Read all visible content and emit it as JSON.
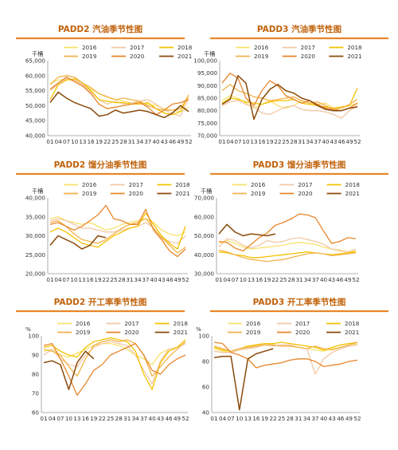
{
  "colors": {
    "accent": "#e8862a",
    "title": "#c0620a",
    "axis": "#999999",
    "series": [
      "#f7e26b",
      "#f2c8a6",
      "#f3c200",
      "#f1b34c",
      "#e8862a",
      "#8a4a0c"
    ]
  },
  "chart_data": [
    {
      "type": "line",
      "title": "PADD2 汽油季节性图",
      "unit_label": "千桶",
      "yticks": [
        "65,000",
        "60,000",
        "55,000",
        "50,000",
        "45,000",
        "40,000"
      ],
      "ylim": [
        40000,
        65000
      ],
      "xticks": [
        "01",
        "04",
        "07",
        "10",
        "13",
        "16",
        "19",
        "22",
        "25",
        "28",
        "31",
        "34",
        "37",
        "40",
        "43",
        "46",
        "49",
        "52"
      ],
      "legend": [
        "2016",
        "2017",
        "2018",
        "2019",
        "2020",
        "2021"
      ],
      "series": [
        {
          "name": "2016",
          "values": [
            57500,
            58500,
            58800,
            58200,
            57200,
            55500,
            54000,
            52800,
            52000,
            51500,
            51000,
            51000,
            50500,
            50000,
            49000,
            48500,
            48000,
            49500
          ]
        },
        {
          "name": "2017",
          "values": [
            55000,
            57000,
            59000,
            58500,
            57000,
            54500,
            52000,
            50500,
            51500,
            50500,
            51000,
            51500,
            52000,
            50500,
            48500,
            47500,
            46500,
            52500
          ]
        },
        {
          "name": "2018",
          "values": [
            52000,
            57000,
            58500,
            59000,
            57500,
            55000,
            52000,
            51500,
            51000,
            51000,
            50500,
            50500,
            51000,
            49000,
            47500,
            47000,
            48000,
            53500
          ]
        },
        {
          "name": "2019",
          "values": [
            57000,
            59500,
            60000,
            59500,
            57500,
            56000,
            54000,
            53000,
            52000,
            52500,
            52000,
            51500,
            50000,
            49000,
            48500,
            48500,
            49000,
            53500
          ]
        },
        {
          "name": "2020",
          "values": [
            55500,
            57500,
            59500,
            58000,
            56500,
            54000,
            50500,
            49000,
            49500,
            50000,
            50500,
            51000,
            49500,
            47000,
            48500,
            50500,
            51000,
            52000
          ]
        },
        {
          "name": "2021",
          "values": [
            51000,
            54500,
            52500,
            51000,
            50000,
            49000,
            46500,
            47000,
            48500,
            47500,
            48000,
            48500,
            48000,
            47000,
            46000,
            47500,
            50000,
            48000
          ]
        }
      ]
    },
    {
      "type": "line",
      "title": "PADD3 汽油季节性图",
      "unit_label": "千桶",
      "yticks": [
        "100,000",
        "95,000",
        "90,000",
        "85,000",
        "80,000",
        "75,000",
        "70,000"
      ],
      "ylim": [
        70000,
        100000
      ],
      "xticks": [
        "01",
        "04",
        "07",
        "10",
        "13",
        "16",
        "19",
        "22",
        "25",
        "28",
        "31",
        "34",
        "37",
        "40",
        "43",
        "46",
        "49",
        "52"
      ],
      "legend": [
        "2016",
        "2017",
        "2018",
        "2019",
        "2020",
        "2021"
      ],
      "series": [
        {
          "name": "2016",
          "values": [
            84000,
            86000,
            85000,
            83000,
            81000,
            82500,
            84000,
            82000,
            81000,
            82000,
            84000,
            83000,
            82500,
            83000,
            81000,
            81000,
            82000,
            83000
          ]
        },
        {
          "name": "2017",
          "values": [
            82000,
            83500,
            84000,
            82500,
            81500,
            79000,
            78500,
            80000,
            81500,
            82000,
            80500,
            80000,
            80000,
            79500,
            78500,
            77000,
            80000,
            82000
          ]
        },
        {
          "name": "2018",
          "values": [
            83000,
            85000,
            84500,
            83500,
            83000,
            82500,
            83500,
            84000,
            84000,
            84500,
            83000,
            82500,
            82000,
            81500,
            81000,
            81500,
            82000,
            89000
          ]
        },
        {
          "name": "2019",
          "values": [
            88000,
            90500,
            88000,
            87000,
            85500,
            85000,
            84000,
            84500,
            85000,
            85500,
            84000,
            83000,
            83500,
            82000,
            80500,
            81000,
            82500,
            84500
          ]
        },
        {
          "name": "2020",
          "values": [
            91000,
            95000,
            93000,
            85000,
            82000,
            88000,
            92000,
            90000,
            86000,
            84500,
            83000,
            84000,
            82500,
            81000,
            80500,
            80000,
            81000,
            83000
          ]
        },
        {
          "name": "2021",
          "values": [
            82500,
            84500,
            94000,
            91000,
            76500,
            84500,
            88500,
            90500,
            88000,
            87000,
            85000,
            84000,
            82000,
            80500,
            80000,
            80000,
            81000,
            81500
          ]
        }
      ]
    },
    {
      "type": "line",
      "title": "PADD2 馏分油季节性图",
      "unit_label": "千桶",
      "yticks": [
        "40,000",
        "35,000",
        "30,000",
        "25,000",
        "20,000"
      ],
      "ylim": [
        20000,
        40000
      ],
      "xticks": [
        "01",
        "04",
        "07",
        "10",
        "13",
        "16",
        "19",
        "22",
        "25",
        "28",
        "31",
        "34",
        "37",
        "40",
        "43",
        "46",
        "49",
        "52"
      ],
      "legend": [
        "2016",
        "2017",
        "2018",
        "2019",
        "2020",
        "2021"
      ],
      "series": [
        {
          "name": "2016",
          "values": [
            34500,
            35000,
            34000,
            33500,
            33000,
            33500,
            32500,
            31500,
            32000,
            33000,
            33500,
            34000,
            34500,
            33500,
            31500,
            30500,
            30000,
            31000
          ]
        },
        {
          "name": "2017",
          "values": [
            34000,
            34500,
            34000,
            33000,
            32000,
            32000,
            31500,
            31000,
            31000,
            31500,
            32000,
            32500,
            33500,
            32000,
            29500,
            28500,
            28000,
            30000
          ]
        },
        {
          "name": "2018",
          "values": [
            31000,
            32000,
            31000,
            29500,
            28000,
            27500,
            27000,
            28500,
            30000,
            31000,
            32000,
            32500,
            36000,
            33000,
            30000,
            28000,
            26500,
            32500
          ]
        },
        {
          "name": "2019",
          "values": [
            33500,
            34000,
            32500,
            30500,
            29000,
            28500,
            28000,
            29000,
            30500,
            32000,
            33000,
            33500,
            34500,
            32000,
            29500,
            27500,
            25500,
            27000
          ]
        },
        {
          "name": "2020",
          "values": [
            33000,
            33500,
            32500,
            31500,
            32500,
            34000,
            35500,
            38000,
            34500,
            34000,
            33000,
            33000,
            37000,
            31500,
            29000,
            26000,
            24500,
            26500
          ]
        },
        {
          "name": "2021",
          "values": [
            27500,
            30000,
            29000,
            28000,
            26500,
            27500,
            30000,
            29500,
            null,
            null,
            null,
            null,
            null,
            null,
            null,
            null,
            null,
            null
          ]
        }
      ]
    },
    {
      "type": "line",
      "title": "PADD3 馏分油季节性图",
      "unit_label": "千桶",
      "yticks": [
        "70,000",
        "60,000",
        "50,000",
        "40,000",
        "30,000"
      ],
      "ylim": [
        30000,
        70000
      ],
      "xticks": [
        "01",
        "04",
        "07",
        "10",
        "13",
        "16",
        "19",
        "22",
        "25",
        "28",
        "31",
        "34",
        "37",
        "40",
        "43",
        "46",
        "49",
        "52"
      ],
      "legend": [
        "2016",
        "2017",
        "2018",
        "2019",
        "2020",
        "2021"
      ],
      "series": [
        {
          "name": "2016",
          "values": [
            46000,
            47500,
            46000,
            44000,
            43000,
            43500,
            44000,
            44500,
            45000,
            46000,
            46500,
            46000,
            45500,
            44000,
            43000,
            42500,
            41500,
            42000
          ]
        },
        {
          "name": "2017",
          "values": [
            44000,
            48500,
            47500,
            45000,
            43500,
            45000,
            47500,
            46500,
            47000,
            48500,
            49000,
            48000,
            47000,
            45500,
            43000,
            42000,
            41500,
            43000
          ]
        },
        {
          "name": "2018",
          "values": [
            41500,
            41000,
            40000,
            39500,
            38500,
            38500,
            39000,
            39500,
            40000,
            40500,
            41000,
            41500,
            41000,
            40500,
            40000,
            40500,
            41000,
            41500
          ]
        },
        {
          "name": "2019",
          "values": [
            42500,
            41500,
            40000,
            38500,
            37500,
            37000,
            36500,
            37000,
            37500,
            38500,
            39500,
            40500,
            41000,
            40500,
            39500,
            40000,
            40500,
            41000
          ]
        },
        {
          "name": "2020",
          "values": [
            47000,
            46500,
            43500,
            42000,
            45500,
            49000,
            51500,
            55500,
            57000,
            59000,
            61500,
            61000,
            59500,
            52500,
            46000,
            47000,
            49000,
            48500
          ]
        },
        {
          "name": "2021",
          "values": [
            51000,
            56000,
            52000,
            50000,
            51000,
            50500,
            50000,
            51000,
            null,
            null,
            null,
            null,
            null,
            null,
            null,
            null,
            null,
            null
          ]
        }
      ]
    },
    {
      "type": "line",
      "title": "PADD2 开工率季节性图",
      "unit_label": "%",
      "yticks": [
        "100",
        "90",
        "80",
        "70",
        "60"
      ],
      "ylim": [
        60,
        100
      ],
      "xticks": [
        "01",
        "04",
        "07",
        "10",
        "13",
        "16",
        "19",
        "22",
        "25",
        "28",
        "31",
        "34",
        "37",
        "40",
        "43",
        "46",
        "49",
        "52"
      ],
      "legend": [
        "2016",
        "2017",
        "2018",
        "2019",
        "2020",
        "2021"
      ],
      "series": [
        {
          "name": "2016",
          "values": [
            92,
            93,
            90,
            89,
            91,
            93,
            95,
            96,
            96,
            95,
            93,
            90,
            88,
            85,
            91,
            93,
            94,
            96
          ]
        },
        {
          "name": "2017",
          "values": [
            90,
            93,
            88,
            85,
            84,
            90,
            94,
            96,
            97,
            96,
            95,
            90,
            82,
            75,
            87,
            93,
            94,
            96
          ]
        },
        {
          "name": "2018",
          "values": [
            94,
            95,
            92,
            90,
            89,
            94,
            97,
            98,
            99,
            98,
            97,
            92,
            80,
            72,
            86,
            92,
            94,
            98
          ]
        },
        {
          "name": "2019",
          "values": [
            93,
            92,
            90,
            84,
            79,
            88,
            95,
            97,
            98,
            97,
            98,
            96,
            90,
            79,
            84,
            89,
            93,
            97
          ]
        },
        {
          "name": "2020",
          "values": [
            95,
            96,
            88,
            79,
            69,
            75,
            82,
            85,
            90,
            92,
            94,
            96,
            90,
            82,
            80,
            85,
            88,
            90
          ]
        },
        {
          "name": "2021",
          "values": [
            86,
            87,
            85,
            72,
            86,
            92,
            88,
            null,
            null,
            null,
            null,
            null,
            null,
            null,
            null,
            null,
            null,
            null
          ]
        }
      ]
    },
    {
      "type": "line",
      "title": "PADD3 开工率季节性图",
      "unit_label": "%",
      "yticks": [
        "100",
        "80",
        "60",
        "40"
      ],
      "ylim": [
        40,
        100
      ],
      "xticks": [
        "01",
        "04",
        "07",
        "10",
        "13",
        "16",
        "19",
        "22",
        "25",
        "28",
        "31",
        "34",
        "37",
        "40",
        "43",
        "46",
        "49",
        "52"
      ],
      "legend": [
        "2016",
        "2017",
        "2018",
        "2019",
        "2020",
        "2021"
      ],
      "series": [
        {
          "name": "2016",
          "values": [
            90,
            88,
            87,
            89,
            90,
            92,
            93,
            93,
            92,
            92,
            91,
            90,
            89,
            88,
            90,
            91,
            92,
            94
          ]
        },
        {
          "name": "2017",
          "values": [
            88,
            87,
            87,
            89,
            90,
            91,
            93,
            92,
            93,
            93,
            91,
            90,
            70,
            82,
            87,
            90,
            92,
            93
          ]
        },
        {
          "name": "2018",
          "values": [
            91,
            89,
            88,
            90,
            92,
            93,
            94,
            94,
            95,
            94,
            93,
            92,
            91,
            89,
            91,
            93,
            94,
            95
          ]
        },
        {
          "name": "2019",
          "values": [
            92,
            90,
            88,
            90,
            91,
            92,
            93,
            93,
            92,
            92,
            91,
            90,
            92,
            90,
            89,
            91,
            93,
            95
          ]
        },
        {
          "name": "2020",
          "values": [
            95,
            94,
            87,
            85,
            82,
            75,
            77,
            78,
            79,
            81,
            82,
            82,
            80,
            76,
            77,
            78,
            80,
            81
          ]
        },
        {
          "name": "2021",
          "values": [
            83,
            84,
            84,
            42,
            82,
            86,
            88,
            90,
            null,
            null,
            null,
            null,
            null,
            null,
            null,
            null,
            null,
            null
          ]
        }
      ]
    }
  ]
}
